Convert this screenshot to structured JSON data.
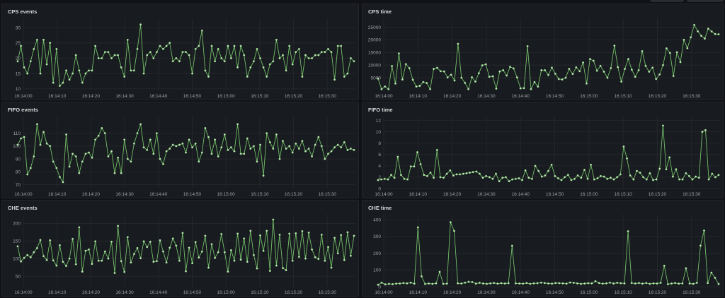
{
  "theme": {
    "line_color": "#73bf69",
    "background": "#111217",
    "panel_bg": "#181b1f"
  },
  "panels": [
    {
      "title": "CPS events",
      "left": true
    },
    {
      "title": "CPS time",
      "left": false
    },
    {
      "title": "FIFO events",
      "left": true
    },
    {
      "title": "FIFO time",
      "left": false
    },
    {
      "title": "CHE events",
      "left": true
    },
    {
      "title": "CHE time",
      "left": false
    }
  ],
  "chart_data": [
    {
      "type": "line",
      "title": "CPS events",
      "x_ticks": [
        "16:14:00",
        "16:14:10",
        "16:14:20",
        "16:14:30",
        "16:14:40",
        "16:14:50",
        "16:15:00",
        "16:15:10",
        "16:15:20",
        "16:15:30"
      ],
      "y_ticks": [
        10,
        15,
        20,
        25,
        30
      ],
      "ylim": [
        9.5,
        33
      ],
      "series": [
        {
          "values": [
            19,
            24,
            17,
            15,
            19,
            23,
            26,
            15,
            26,
            18,
            25,
            12,
            23,
            11,
            12,
            16,
            13,
            15,
            21,
            16,
            12,
            15,
            16,
            16,
            24,
            20,
            20,
            22,
            22,
            20,
            21,
            21,
            17,
            14,
            26,
            16,
            16,
            23,
            31,
            15,
            21,
            22,
            20,
            22,
            24,
            23,
            24,
            25,
            19,
            20,
            19,
            22,
            22,
            21,
            15,
            23,
            24,
            29,
            16,
            14,
            24,
            19,
            23,
            20,
            19,
            24,
            20,
            24,
            17,
            24,
            21,
            14,
            17,
            19,
            23,
            20,
            17,
            14,
            18,
            19,
            26,
            20,
            21,
            16,
            24,
            18,
            22,
            23,
            14,
            21,
            20,
            20,
            21,
            21,
            22,
            22,
            23,
            22,
            13,
            24,
            24,
            14,
            15,
            20,
            19
          ]
        }
      ]
    },
    {
      "type": "line",
      "title": "CPS time",
      "x_ticks": [
        "16:14:00",
        "16:14:10",
        "16:14:20",
        "16:14:30",
        "16:14:40",
        "16:14:50",
        "16:15:00",
        "16:15:10",
        "16:15:20",
        "16:15:30"
      ],
      "y_ticks": [
        5000,
        10000,
        15000,
        20000,
        25000
      ],
      "ylim": [
        0,
        28500
      ],
      "series": [
        {
          "values": [
            4700,
            500,
            1500,
            500,
            9600,
            2700,
            14600,
            4300,
            10400,
            8800,
            4200,
            1500,
            1800,
            3300,
            2900,
            500,
            8500,
            8900,
            7600,
            7500,
            5100,
            6200,
            3900,
            18400,
            5000,
            3000,
            500,
            5200,
            3500,
            6800,
            9900,
            10300,
            5400,
            5600,
            700,
            7500,
            8000,
            5900,
            9300,
            8700,
            5100,
            800,
            900,
            17500,
            500,
            3300,
            1500,
            8000,
            8000,
            6100,
            9000,
            6600,
            4500,
            4300,
            5000,
            8500,
            6500,
            9100,
            7600,
            11000,
            2700,
            12400,
            11700,
            7800,
            9700,
            7400,
            5000,
            8800,
            17700,
            9200,
            3500,
            8500,
            12400,
            8200,
            5400,
            8000,
            15500,
            9700,
            7400,
            9000,
            4500,
            6300,
            10000,
            16600,
            14800,
            5700,
            15100,
            11200,
            20000,
            16700,
            21000,
            25900,
            23400,
            21600,
            20500,
            24400,
            23300,
            22300,
            22200
          ]
        }
      ]
    },
    {
      "type": "line",
      "title": "FIFO events",
      "x_ticks": [
        "16:14:00",
        "16:14:10",
        "16:14:20",
        "16:14:30",
        "16:14:40",
        "16:14:50",
        "16:15:00",
        "16:15:10",
        "16:15:20",
        "16:15:30"
      ],
      "y_ticks": [
        70,
        80,
        90,
        100,
        110
      ],
      "ylim": [
        67,
        123
      ],
      "series": [
        {
          "values": [
            101,
            106,
            107,
            78,
            83,
            92,
            117,
            101,
            111,
            102,
            100,
            88,
            83,
            76,
            72,
            109,
            84,
            94,
            92,
            79,
            88,
            94,
            95,
            91,
            105,
            108,
            114,
            110,
            92,
            96,
            79,
            91,
            79,
            105,
            90,
            88,
            102,
            110,
            117,
            99,
            97,
            105,
            94,
            110,
            90,
            86,
            96,
            98,
            101,
            100,
            101,
            102,
            95,
            105,
            99,
            102,
            88,
            95,
            114,
            107,
            94,
            105,
            92,
            99,
            109,
            97,
            99,
            96,
            117,
            94,
            94,
            106,
            98,
            100,
            88,
            101,
            77,
            110,
            103,
            98,
            109,
            90,
            104,
            98,
            100,
            95,
            102,
            98,
            104,
            96,
            98,
            92,
            101,
            107,
            100,
            90,
            94,
            96,
            99,
            101,
            99,
            103,
            97,
            98,
            97
          ]
        }
      ]
    },
    {
      "type": "line",
      "title": "FIFO time",
      "x_ticks": [
        "16:14:00",
        "16:14:10",
        "16:14:20",
        "16:14:30",
        "16:14:40",
        "16:14:50",
        "16:15:00",
        "16:15:10",
        "16:15:20",
        "16:15:30"
      ],
      "y_ticks": [
        0,
        2,
        4,
        6,
        8,
        10,
        12
      ],
      "ylim": [
        0,
        12.7
      ],
      "series": [
        {
          "values": [
            1.5,
            1.6,
            1.7,
            1.6,
            2.4,
            1.9,
            5.6,
            2.4,
            1.7,
            1.6,
            3.9,
            3.9,
            6.4,
            4.3,
            2.4,
            2.2,
            2.8,
            1.9,
            6.8,
            2.0,
            1.9,
            2.6,
            3.2,
            2.3,
            2.5,
            2.5,
            2.6,
            2.7,
            2.8,
            2.9,
            3.0,
            2.6,
            1.9,
            2.2,
            2.0,
            1.7,
            2.6,
            1.3,
            1.9,
            2.0,
            1.3,
            1.6,
            1.7,
            1.8,
            1.5,
            3.2,
            1.9,
            1.7,
            4.0,
            3.1,
            2.1,
            2.3,
            3.1,
            4.2,
            2.2,
            1.8,
            1.5,
            2.0,
            2.4,
            1.5,
            1.7,
            2.3,
            1.9,
            3.3,
            1.7,
            4.2,
            1.6,
            1.8,
            2.2,
            2.1,
            1.7,
            1.9,
            1.6,
            2.0,
            2.5,
            7.4,
            5.3,
            2.3,
            1.6,
            3.1,
            2.8,
            2.0,
            1.6,
            2.7,
            1.5,
            1.6,
            3.5,
            11.1,
            3.4,
            5.5,
            2.1,
            3.4,
            1.6,
            1.6,
            2.7,
            2.2,
            1.6,
            2.1,
            1.9,
            10.0,
            10.3,
            1.6,
            2.6,
            2.0,
            2.4
          ]
        }
      ]
    },
    {
      "type": "line",
      "title": "CHE events",
      "x_ticks": [
        "16:14:00",
        "16:14:10",
        "16:14:20",
        "16:14:30",
        "16:14:40",
        "16:14:50",
        "16:15:00",
        "16:15:10",
        "16:15:20",
        "16:15:30"
      ],
      "y_ticks": [
        50,
        100,
        150,
        200
      ],
      "ylim": [
        20,
        225
      ],
      "series": [
        {
          "values": [
            135,
            92,
            102,
            110,
            104,
            118,
            130,
            153,
            107,
            96,
            152,
            95,
            80,
            138,
            91,
            79,
            100,
            156,
            84,
            189,
            63,
            122,
            126,
            85,
            149,
            94,
            94,
            120,
            100,
            148,
            59,
            193,
            93,
            62,
            161,
            89,
            113,
            130,
            101,
            149,
            133,
            148,
            91,
            93,
            152,
            120,
            89,
            131,
            157,
            137,
            94,
            173,
            64,
            131,
            87,
            147,
            103,
            120,
            165,
            74,
            141,
            102,
            118,
            170,
            118,
            63,
            124,
            94,
            171,
            97,
            157,
            91,
            179,
            110,
            72,
            166,
            122,
            179,
            65,
            211,
            80,
            168,
            73,
            67,
            171,
            94,
            172,
            105,
            178,
            100,
            174,
            126,
            104,
            99,
            168,
            94,
            133,
            74,
            159,
            115,
            167,
            96,
            175,
            108,
            165
          ]
        }
      ]
    },
    {
      "type": "line",
      "title": "CHE time",
      "x_ticks": [
        "16:14:00",
        "16:14:10",
        "16:14:20",
        "16:14:30",
        "16:14:40",
        "16:14:50",
        "16:15:00",
        "16:15:10",
        "16:15:20",
        "16:15:30"
      ],
      "y_ticks": [
        0,
        100,
        200,
        300,
        400
      ],
      "ylim": [
        0,
        430
      ],
      "series": [
        {
          "values": [
            12,
            24,
            14,
            17,
            15,
            18,
            19,
            22,
            20,
            24,
            18,
            354,
            62,
            16,
            19,
            17,
            20,
            88,
            17,
            18,
            385,
            333,
            20,
            19,
            24,
            29,
            28,
            18,
            23,
            19,
            17,
            20,
            22,
            18,
            21,
            19,
            21,
            244,
            20,
            19,
            18,
            22,
            17,
            20,
            21,
            24,
            22,
            19,
            18,
            22,
            21,
            20,
            18,
            25,
            23,
            20,
            17,
            19,
            21,
            20,
            33,
            22,
            18,
            20,
            24,
            19,
            23,
            21,
            20,
            331,
            22,
            19,
            22,
            18,
            22,
            17,
            20,
            19,
            23,
            125,
            15,
            19,
            22,
            18,
            20,
            110,
            19,
            17,
            23,
            245,
            335,
            22,
            84,
            53,
            16
          ]
        }
      ]
    }
  ]
}
